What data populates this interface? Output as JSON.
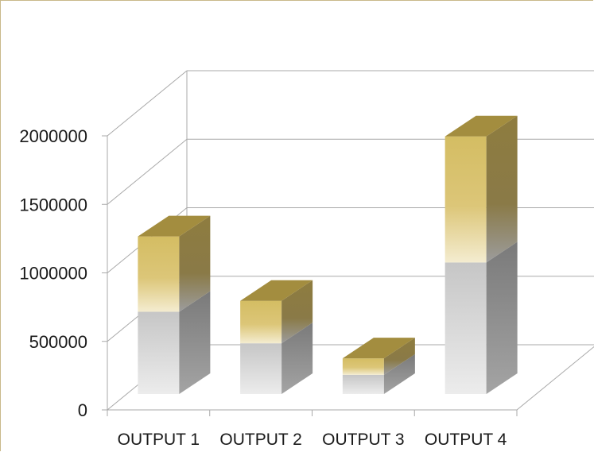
{
  "chart_data": {
    "type": "bar",
    "stacked": true,
    "three_d": true,
    "categories": [
      "OUTPUT 1",
      "OUTPUT 2",
      "OUTPUT 3",
      "OUTPUT 4"
    ],
    "series": [
      {
        "values": [
          600000,
          370000,
          140000,
          960000
        ],
        "color": "#d9d9d9"
      },
      {
        "values": [
          550000,
          310000,
          120000,
          920000
        ],
        "color": "#d6bf68"
      }
    ],
    "ylim": [
      0,
      2000000
    ],
    "yticks": [
      0,
      500000,
      1000000,
      1500000,
      2000000
    ],
    "ytick_labels": [
      "0",
      "500000",
      "1000000",
      "1500000",
      "2000000"
    ],
    "title": "",
    "xlabel": "",
    "ylabel": "",
    "grid": true,
    "legend": "none"
  }
}
